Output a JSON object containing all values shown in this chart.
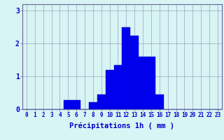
{
  "categories": [
    0,
    1,
    2,
    3,
    4,
    5,
    6,
    7,
    8,
    9,
    10,
    11,
    12,
    13,
    14,
    15,
    16,
    17,
    18,
    19,
    20,
    21,
    22,
    23
  ],
  "values": [
    0,
    0,
    0,
    0,
    0,
    0.28,
    0.28,
    0,
    0.22,
    0.45,
    1.2,
    1.35,
    2.5,
    2.25,
    1.6,
    1.6,
    0.45,
    0,
    0,
    0,
    0,
    0,
    0,
    0
  ],
  "bar_color": "#0000ee",
  "bar_edge_color": "#0000cc",
  "background_color": "#d8f4f4",
  "grid_color": "#9999bb",
  "xlabel": "Précipitations 1h ( mm )",
  "ylim": [
    0,
    3.2
  ],
  "yticks": [
    0,
    1,
    2,
    3
  ],
  "xlim": [
    -0.5,
    23.5
  ],
  "xlabel_color": "#0000cc",
  "tick_color": "#0000cc",
  "axis_color": "#666699",
  "tick_fontsize": 5.5,
  "ytick_fontsize": 7.0,
  "xlabel_fontsize": 7.5
}
